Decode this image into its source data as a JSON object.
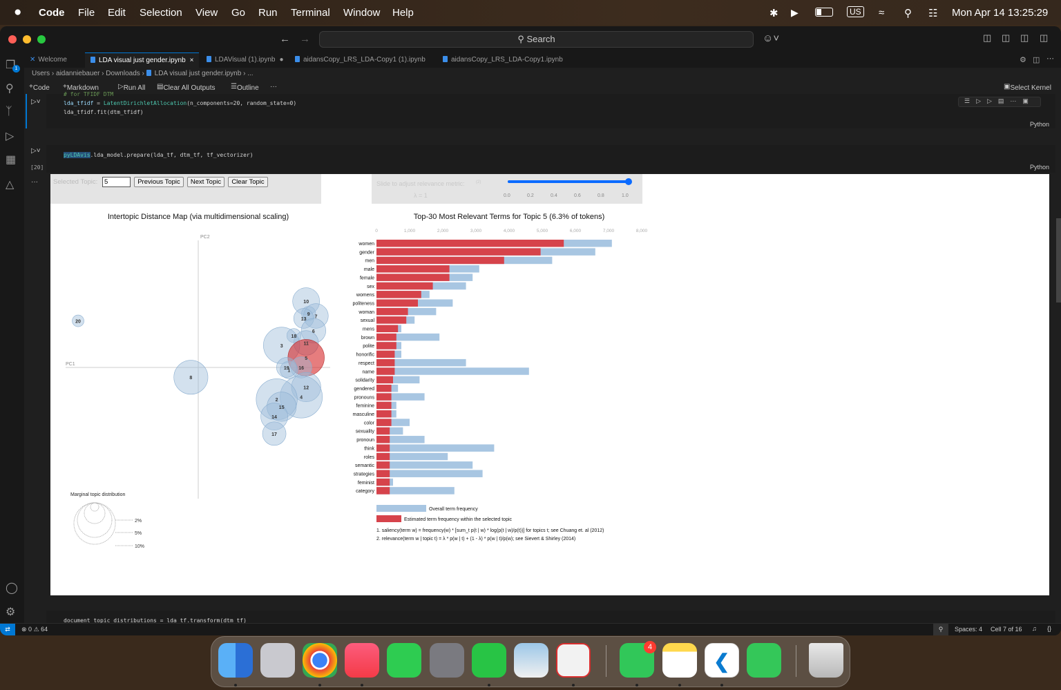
{
  "menubar": {
    "apple": "",
    "app": "Code",
    "items": [
      "File",
      "Edit",
      "Selection",
      "View",
      "Go",
      "Run",
      "Terminal",
      "Window",
      "Help"
    ],
    "input_source": "US",
    "clock": "Mon Apr 14  13:25:29"
  },
  "titlebar": {
    "search": "Search"
  },
  "tabs": [
    {
      "label": "Welcome"
    },
    {
      "label": "LDA visual just gender.ipynb"
    },
    {
      "label": "LDAVisual (1).ipynb"
    },
    {
      "label": "aidansCopy_LRS_LDA-Copy1 (1).ipynb"
    },
    {
      "label": "aidansCopy_LRS_LDA-Copy1.ipynb"
    }
  ],
  "breadcrumb": {
    "p1": "Users",
    "p2": "aidanniebauer",
    "p3": "Downloads",
    "p4": "LDA visual just gender.ipynb",
    "p5": "..."
  },
  "toolbar": {
    "code": "Code",
    "markdown": "Markdown",
    "run_all": "Run All",
    "clear": "Clear All Outputs",
    "outline": "Outline",
    "more": "···",
    "kernel": "Select Kernel"
  },
  "explorer_badge": "1",
  "cell1": {
    "comment": "# for TFIDF DTM",
    "line1a": "lda_tfidf",
    "line1b": "LatentDirichletAllocation",
    "line1c": "(n_components=20, random_state=0)",
    "line2": "lda_tfidf.fit(dtm_tfidf)",
    "lang": "Python"
  },
  "cell2": {
    "exec": "[20]",
    "hl": "pyLDAvis",
    "rest": ".lda_model.prepare(lda_tf, dtm_tf, tf_vectorizer)",
    "lang": "Python",
    "more": "···"
  },
  "cell3": {
    "code": "document_topic_distributions = lda_tf.transform(dtm_tf)"
  },
  "ldavis": {
    "selected_topic_label": "Selected Topic:",
    "selected_topic_value": "5",
    "prev": "Previous Topic",
    "next": "Next Topic",
    "clear": "Clear Topic",
    "slider_label": "Slide to adjust relevance metric:",
    "slider_note": "(2)",
    "lambda": "λ = 1",
    "slider_value": 1.0,
    "slider_ticks": [
      "0.0",
      "0.2",
      "0.4",
      "0.6",
      "0.8",
      "1.0"
    ],
    "left_title": "Intertopic Distance Map (via multidimensional scaling)",
    "pc1": "PC1",
    "pc2": "PC2",
    "marginal_title": "Marginal topic distribution",
    "marginal_pcts": [
      "2%",
      "5%",
      "10%"
    ],
    "right_title": "Top-30 Most Relevant Terms for Topic 5 (6.3% of tokens)",
    "legend_overall": "Overall term frequency",
    "legend_est": "Estimated term frequency within the selected topic",
    "footnote1": "1. saliency(term w) = frequency(w) * [sum_t p(t | w) * log(p(t | w)/p(t))] for topics t; see Chuang et. al (2012)",
    "footnote2": "2. relevance(term w | topic t) = λ * p(w | t) + (1 - λ) * p(w | t)/p(w); see Sievert & Shirley (2014)"
  },
  "chart_data": [
    {
      "type": "scatter",
      "title": "Intertopic Distance Map (via multidimensional scaling)",
      "xlabel": "PC1",
      "ylabel": "PC2",
      "selected": "5",
      "colors": {
        "topic": "#9ebcda",
        "selected": "#d62728"
      },
      "topics": [
        {
          "label": "20",
          "x": -0.49,
          "y": 0.19,
          "size": 1.0
        },
        {
          "label": "8",
          "x": -0.03,
          "y": -0.04,
          "size": 2.9
        },
        {
          "label": "10",
          "x": 0.44,
          "y": 0.27,
          "size": 2.3
        },
        {
          "label": "9",
          "x": 0.45,
          "y": 0.22,
          "size": 1.2
        },
        {
          "label": "7",
          "x": 0.48,
          "y": 0.21,
          "size": 2.1
        },
        {
          "label": "13",
          "x": 0.43,
          "y": 0.2,
          "size": 1.7
        },
        {
          "label": "6",
          "x": 0.47,
          "y": 0.15,
          "size": 2.1
        },
        {
          "label": "18",
          "x": 0.39,
          "y": 0.13,
          "size": 1.2
        },
        {
          "label": "11",
          "x": 0.44,
          "y": 0.1,
          "size": 2.1
        },
        {
          "label": "3",
          "x": 0.34,
          "y": 0.09,
          "size": 3.1
        },
        {
          "label": "5",
          "x": 0.44,
          "y": 0.04,
          "size": 3.1
        },
        {
          "label": "16",
          "x": 0.42,
          "y": 0.0,
          "size": 1.8
        },
        {
          "label": "1",
          "x": 0.37,
          "y": -0.01,
          "size": 1.5
        },
        {
          "label": "19",
          "x": 0.36,
          "y": 0.0,
          "size": 1.7
        },
        {
          "label": "12",
          "x": 0.44,
          "y": -0.08,
          "size": 2.5
        },
        {
          "label": "4",
          "x": 0.42,
          "y": -0.12,
          "size": 3.6
        },
        {
          "label": "2",
          "x": 0.32,
          "y": -0.13,
          "size": 3.5
        },
        {
          "label": "15",
          "x": 0.34,
          "y": -0.16,
          "size": 2.5
        },
        {
          "label": "14",
          "x": 0.31,
          "y": -0.2,
          "size": 2.3
        },
        {
          "label": "17",
          "x": 0.31,
          "y": -0.27,
          "size": 2.0
        }
      ]
    },
    {
      "type": "bar",
      "orientation": "horizontal",
      "title": "Top-30 Most Relevant Terms for Topic 5 (6.3% of tokens)",
      "xlim": [
        0,
        8000
      ],
      "x_ticks": [
        "0",
        "1,000",
        "2,000",
        "3,000",
        "4,000",
        "5,000",
        "6,000",
        "7,000",
        "8,000"
      ],
      "categories": [
        "women",
        "gender",
        "men",
        "male",
        "female",
        "sex",
        "womens",
        "politeness",
        "woman",
        "sexual",
        "mens",
        "brown",
        "polite",
        "honorific",
        "respect",
        "name",
        "solidarity",
        "gendered",
        "pronouns",
        "feminine",
        "masculine",
        "color",
        "sexuality",
        "pronoun",
        "think",
        "roles",
        "semantic",
        "strategies",
        "feminist",
        "category"
      ],
      "series": [
        {
          "name": "Overall term frequency",
          "color": "#a8c6e2",
          "values": [
            7100,
            6600,
            5300,
            3100,
            2900,
            2700,
            1600,
            2300,
            1800,
            1150,
            750,
            1900,
            750,
            750,
            2700,
            4600,
            1300,
            650,
            1450,
            600,
            600,
            1000,
            800,
            1450,
            3550,
            2150,
            2900,
            3200,
            500,
            2350
          ]
        },
        {
          "name": "Estimated term frequency within the selected topic",
          "color": "#d6434b",
          "values": [
            5650,
            4950,
            3850,
            2200,
            2200,
            1700,
            1350,
            1250,
            950,
            900,
            650,
            600,
            600,
            550,
            550,
            550,
            500,
            450,
            450,
            450,
            450,
            450,
            400,
            400,
            400,
            400,
            400,
            400,
            400,
            400
          ]
        }
      ]
    }
  ],
  "statusbar": {
    "errors": "0",
    "warnings": "64",
    "spaces": "Spaces: 4",
    "cell": "Cell 7 of 16"
  },
  "dock": {
    "apps": [
      "Finder",
      "Launchpad",
      "Chrome",
      "Music",
      "FaceTime",
      "System Settings",
      "WeChat",
      "Preview",
      "Zotero",
      "Messages",
      "Notes",
      "VS Code",
      "Numbers",
      "Trash"
    ],
    "messages_badge": "4"
  }
}
